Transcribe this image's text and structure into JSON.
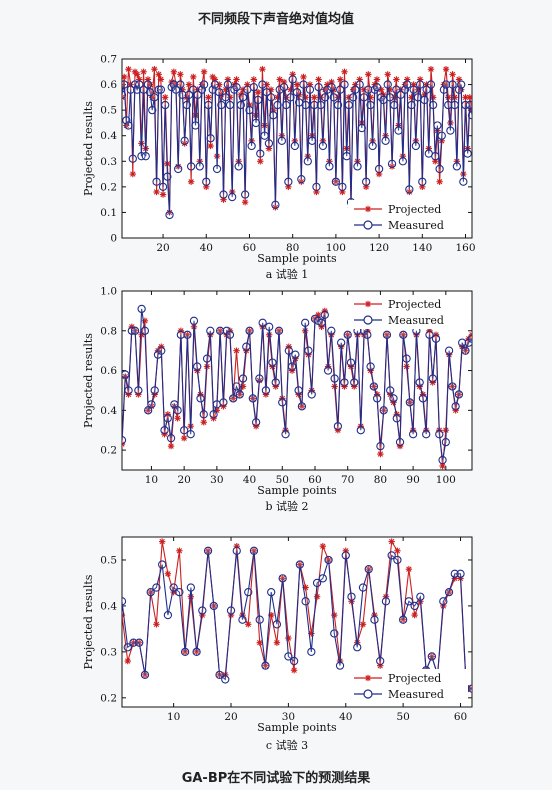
{
  "heading_top": "不同频段下声音绝对值均值",
  "heading_bottom": "GA-BP在不同试验下的预测结果",
  "colors": {
    "projected": "#cc1f1f",
    "measured": "#1f2e8a"
  },
  "chart_data": [
    {
      "type": "line",
      "caption": "a  试验 1",
      "xlabel": "Sample points",
      "ylabel": "Projected results",
      "xlim": [
        1,
        163
      ],
      "ylim": [
        0,
        0.7
      ],
      "xticks": [
        20,
        40,
        60,
        80,
        100,
        120,
        140,
        160
      ],
      "yticks": [
        0,
        0.1,
        0.2,
        0.3,
        0.4,
        0.5,
        0.6,
        0.7
      ],
      "legend": "bottom-right",
      "series": [
        {
          "name": "Projected",
          "marker": "asterisk",
          "values": [
            0.55,
            0.63,
            0.44,
            0.66,
            0.6,
            0.25,
            0.65,
            0.64,
            0.62,
            0.37,
            0.65,
            0.35,
            0.62,
            0.6,
            0.55,
            0.66,
            0.18,
            0.64,
            0.62,
            0.17,
            0.55,
            0.29,
            0.1,
            0.61,
            0.65,
            0.6,
            0.28,
            0.64,
            0.58,
            0.37,
            0.55,
            0.6,
            0.22,
            0.63,
            0.48,
            0.58,
            0.3,
            0.6,
            0.65,
            0.2,
            0.55,
            0.36,
            0.63,
            0.62,
            0.32,
            0.6,
            0.56,
            0.15,
            0.58,
            0.62,
            0.55,
            0.18,
            0.6,
            0.62,
            0.3,
            0.56,
            0.58,
            0.14,
            0.6,
            0.52,
            0.38,
            0.62,
            0.48,
            0.57,
            0.3,
            0.66,
            0.44,
            0.6,
            0.35,
            0.58,
            0.5,
            0.12,
            0.55,
            0.62,
            0.4,
            0.61,
            0.55,
            0.2,
            0.58,
            0.64,
            0.38,
            0.6,
            0.56,
            0.22,
            0.63,
            0.55,
            0.32,
            0.6,
            0.4,
            0.55,
            0.18,
            0.62,
            0.55,
            0.38,
            0.58,
            0.6,
            0.3,
            0.61,
            0.58,
            0.22,
            0.55,
            0.62,
            0.18,
            0.65,
            0.35,
            0.55,
            0.12,
            0.58,
            0.6,
            0.3,
            0.62,
            0.45,
            0.58,
            0.2,
            0.64,
            0.55,
            0.38,
            0.6,
            0.62,
            0.25,
            0.58,
            0.56,
            0.4,
            0.64,
            0.58,
            0.28,
            0.55,
            0.62,
            0.44,
            0.58,
            0.32,
            0.6,
            0.62,
            0.18,
            0.55,
            0.6,
            0.38,
            0.58,
            0.62,
            0.2,
            0.56,
            0.6,
            0.35,
            0.66,
            0.55,
            0.3,
            0.42,
            0.22,
            0.38,
            0.6,
            0.66,
            0.55,
            0.45,
            0.64,
            0.55,
            0.3,
            0.62,
            0.58,
            0.25,
            0.55,
            0.35,
            0.55,
            0.5
          ],
          "note": ""
        },
        {
          "name": "Measured",
          "marker": "circle",
          "values": [
            0.56,
            0.6,
            0.46,
            0.44,
            0.58,
            0.31,
            0.6,
            0.58,
            0.6,
            0.32,
            0.58,
            0.32,
            0.6,
            0.57,
            0.5,
            0.55,
            0.22,
            0.58,
            0.58,
            0.2,
            0.52,
            0.24,
            0.09,
            0.59,
            0.6,
            0.58,
            0.27,
            0.6,
            0.56,
            0.38,
            0.52,
            0.56,
            0.28,
            0.58,
            0.44,
            0.56,
            0.28,
            0.58,
            0.6,
            0.22,
            0.52,
            0.39,
            0.58,
            0.6,
            0.27,
            0.57,
            0.52,
            0.17,
            0.55,
            0.6,
            0.52,
            0.16,
            0.58,
            0.59,
            0.28,
            0.52,
            0.55,
            0.17,
            0.58,
            0.5,
            0.36,
            0.59,
            0.45,
            0.54,
            0.33,
            0.6,
            0.4,
            0.57,
            0.37,
            0.55,
            0.48,
            0.13,
            0.52,
            0.58,
            0.38,
            0.59,
            0.52,
            0.22,
            0.55,
            0.62,
            0.36,
            0.57,
            0.53,
            0.23,
            0.6,
            0.52,
            0.3,
            0.58,
            0.38,
            0.52,
            0.2,
            0.59,
            0.52,
            0.36,
            0.55,
            0.58,
            0.28,
            0.59,
            0.55,
            0.22,
            0.52,
            0.58,
            0.2,
            0.6,
            0.32,
            0.52,
            0.14,
            0.55,
            0.58,
            0.28,
            0.6,
            0.43,
            0.55,
            0.22,
            0.58,
            0.52,
            0.36,
            0.58,
            0.59,
            0.27,
            0.55,
            0.54,
            0.38,
            0.6,
            0.55,
            0.29,
            0.52,
            0.58,
            0.42,
            0.56,
            0.3,
            0.58,
            0.6,
            0.19,
            0.52,
            0.58,
            0.36,
            0.55,
            0.6,
            0.22,
            0.54,
            0.58,
            0.33,
            0.6,
            0.52,
            0.32,
            0.44,
            0.27,
            0.4,
            0.58,
            0.6,
            0.52,
            0.42,
            0.6,
            0.52,
            0.28,
            0.58,
            0.6,
            0.22,
            0.52,
            0.33,
            0.52,
            0.48
          ]
        }
      ]
    },
    {
      "type": "line",
      "caption": "b  试验 2",
      "xlabel": "Sample points",
      "ylabel": "Projected results",
      "xlim": [
        1,
        108
      ],
      "ylim": [
        0.1,
        1.0
      ],
      "xticks": [
        10,
        20,
        30,
        40,
        50,
        60,
        70,
        80,
        90,
        100
      ],
      "yticks": [
        0.2,
        0.4,
        0.6,
        0.8,
        1.0
      ],
      "legend": "top-right",
      "series": [
        {
          "name": "Projected",
          "marker": "asterisk",
          "values": [
            0.23,
            0.57,
            0.48,
            0.82,
            0.8,
            0.48,
            0.78,
            0.85,
            0.4,
            0.42,
            0.48,
            0.7,
            0.72,
            0.28,
            0.38,
            0.22,
            0.42,
            0.36,
            0.8,
            0.26,
            0.78,
            0.32,
            0.82,
            0.6,
            0.48,
            0.34,
            0.62,
            0.78,
            0.36,
            0.4,
            0.8,
            0.42,
            0.78,
            0.8,
            0.46,
            0.7,
            0.48,
            0.52,
            0.7,
            0.8,
            0.46,
            0.32,
            0.55,
            0.82,
            0.48,
            0.78,
            0.62,
            0.52,
            0.8,
            0.46,
            0.3,
            0.72,
            0.6,
            0.66,
            0.48,
            0.42,
            0.8,
            0.68,
            0.5,
            0.86,
            0.88,
            0.82,
            0.9,
            0.62,
            0.78,
            0.52,
            0.3,
            0.72,
            0.52,
            0.78,
            0.62,
            0.52,
            0.78,
            0.32,
            0.78,
            0.8,
            0.6,
            0.52,
            0.48,
            0.18,
            0.4,
            0.78,
            0.48,
            0.44,
            0.38,
            0.22,
            0.78,
            0.62,
            0.44,
            0.3,
            0.78,
            0.52,
            0.48,
            0.3,
            0.8,
            0.54,
            0.78,
            0.3,
            0.12,
            0.3,
            0.68,
            0.52,
            0.4,
            0.48,
            0.72,
            0.7,
            0.76,
            0.78
          ]
        },
        {
          "name": "Measured",
          "marker": "circle",
          "values": [
            0.25,
            0.58,
            0.5,
            0.8,
            0.8,
            0.5,
            0.91,
            0.8,
            0.4,
            0.43,
            0.5,
            0.68,
            0.7,
            0.3,
            0.36,
            0.26,
            0.43,
            0.4,
            0.78,
            0.3,
            0.78,
            0.28,
            0.85,
            0.62,
            0.46,
            0.38,
            0.66,
            0.8,
            0.38,
            0.43,
            0.8,
            0.44,
            0.8,
            0.78,
            0.46,
            0.52,
            0.48,
            0.56,
            0.72,
            0.8,
            0.46,
            0.34,
            0.56,
            0.84,
            0.5,
            0.82,
            0.64,
            0.54,
            0.8,
            0.44,
            0.28,
            0.7,
            0.62,
            0.68,
            0.5,
            0.42,
            0.84,
            0.7,
            0.48,
            0.86,
            0.85,
            0.84,
            0.88,
            0.6,
            0.8,
            0.56,
            0.32,
            0.74,
            0.54,
            0.78,
            0.64,
            0.54,
            0.8,
            0.3,
            0.8,
            0.78,
            0.62,
            0.52,
            0.46,
            0.22,
            0.4,
            0.78,
            0.5,
            0.46,
            0.36,
            0.24,
            0.78,
            0.66,
            0.44,
            0.28,
            0.8,
            0.54,
            0.46,
            0.28,
            0.78,
            0.56,
            0.76,
            0.28,
            0.15,
            0.24,
            0.7,
            0.52,
            0.42,
            0.48,
            0.74,
            0.7,
            0.74,
            0.76
          ]
        }
      ]
    },
    {
      "type": "line",
      "caption": "c  试验 3",
      "xlabel": "Sample points",
      "ylabel": "Projected results",
      "xlim": [
        1,
        62
      ],
      "ylim": [
        0.18,
        0.55
      ],
      "xticks": [
        10,
        20,
        30,
        40,
        50,
        60
      ],
      "yticks": [
        0.2,
        0.3,
        0.4,
        0.5
      ],
      "legend": "bottom-right",
      "series": [
        {
          "name": "Projected",
          "marker": "asterisk",
          "values": [
            0.38,
            0.28,
            0.32,
            0.32,
            0.25,
            0.43,
            0.36,
            0.54,
            0.47,
            0.43,
            0.52,
            0.3,
            0.42,
            0.3,
            0.38,
            0.52,
            0.4,
            0.25,
            0.25,
            0.38,
            0.53,
            0.38,
            0.36,
            0.52,
            0.32,
            0.27,
            0.38,
            0.32,
            0.46,
            0.33,
            0.26,
            0.49,
            0.44,
            0.34,
            0.42,
            0.53,
            0.5,
            0.38,
            0.28,
            0.52,
            0.41,
            0.32,
            0.36,
            0.48,
            0.38,
            0.27,
            0.42,
            0.54,
            0.52,
            0.37,
            0.48,
            0.38,
            0.41,
            0.26,
            0.29,
            0.25,
            0.4,
            0.43,
            0.46,
            0.46,
            0.22,
            0.22
          ]
        },
        {
          "name": "Measured",
          "marker": "circle",
          "values": [
            0.41,
            0.31,
            0.32,
            0.32,
            0.25,
            0.43,
            0.44,
            0.49,
            0.38,
            0.44,
            0.43,
            0.3,
            0.44,
            0.3,
            0.39,
            0.52,
            0.4,
            0.25,
            0.24,
            0.39,
            0.52,
            0.37,
            0.43,
            0.52,
            0.37,
            0.27,
            0.43,
            0.36,
            0.46,
            0.29,
            0.28,
            0.49,
            0.41,
            0.3,
            0.45,
            0.46,
            0.5,
            0.34,
            0.27,
            0.51,
            0.42,
            0.31,
            0.44,
            0.48,
            0.37,
            0.28,
            0.41,
            0.51,
            0.5,
            0.37,
            0.41,
            0.4,
            0.42,
            0.26,
            0.29,
            0.25,
            0.41,
            0.43,
            0.47,
            0.47,
            0.22,
            0.22
          ]
        }
      ]
    }
  ]
}
